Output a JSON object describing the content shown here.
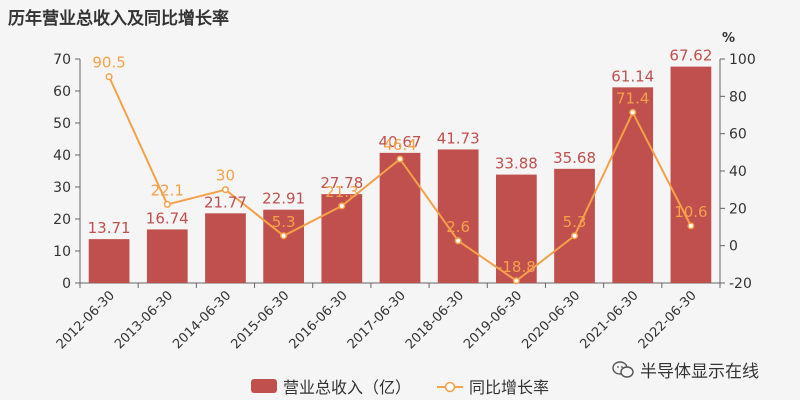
{
  "title": "历年营业总收入及同比增长率",
  "watermark": "半导体显示在线",
  "colors": {
    "bar": "#c0504d",
    "line": "#f5a04a",
    "axis": "#666666",
    "text": "#333333"
  },
  "chart_data": {
    "type": "bar",
    "categories": [
      "2012-06-30",
      "2013-06-30",
      "2014-06-30",
      "2015-06-30",
      "2016-06-30",
      "2017-06-30",
      "2018-06-30",
      "2019-06-30",
      "2020-06-30",
      "2021-06-30",
      "2022-06-30"
    ],
    "series": [
      {
        "name": "营业总收入（亿）",
        "type": "bar",
        "axis": "left",
        "values": [
          13.71,
          16.74,
          21.77,
          22.91,
          27.78,
          40.67,
          41.73,
          33.88,
          35.68,
          61.14,
          67.62
        ],
        "labels": [
          "13.71",
          "16.74",
          "21.77",
          "22.91",
          "27.78",
          "40.67",
          "41.73",
          "33.88",
          "35.68",
          "61.14",
          "67.62"
        ]
      },
      {
        "name": "同比增长率",
        "type": "line",
        "axis": "right",
        "values": [
          90.5,
          22.1,
          30,
          5.3,
          21.3,
          46.4,
          2.6,
          -18.8,
          5.3,
          71.4,
          10.6
        ],
        "labels": [
          "90.5",
          "22.1",
          "30",
          "5.3",
          "21.3",
          "46.4",
          "2.6",
          "-18.8",
          "5.3",
          "71.4",
          "10.6"
        ]
      }
    ],
    "y_left": {
      "ylim": [
        0,
        70
      ],
      "ticks": [
        "0",
        "10",
        "20",
        "30",
        "40",
        "50",
        "60",
        "70"
      ]
    },
    "y_right": {
      "unit": "%",
      "ylim": [
        -20,
        100
      ],
      "ticks": [
        "-20",
        "0",
        "20",
        "40",
        "60",
        "80",
        "100"
      ]
    },
    "legend": "bottom-center",
    "grid": false
  }
}
